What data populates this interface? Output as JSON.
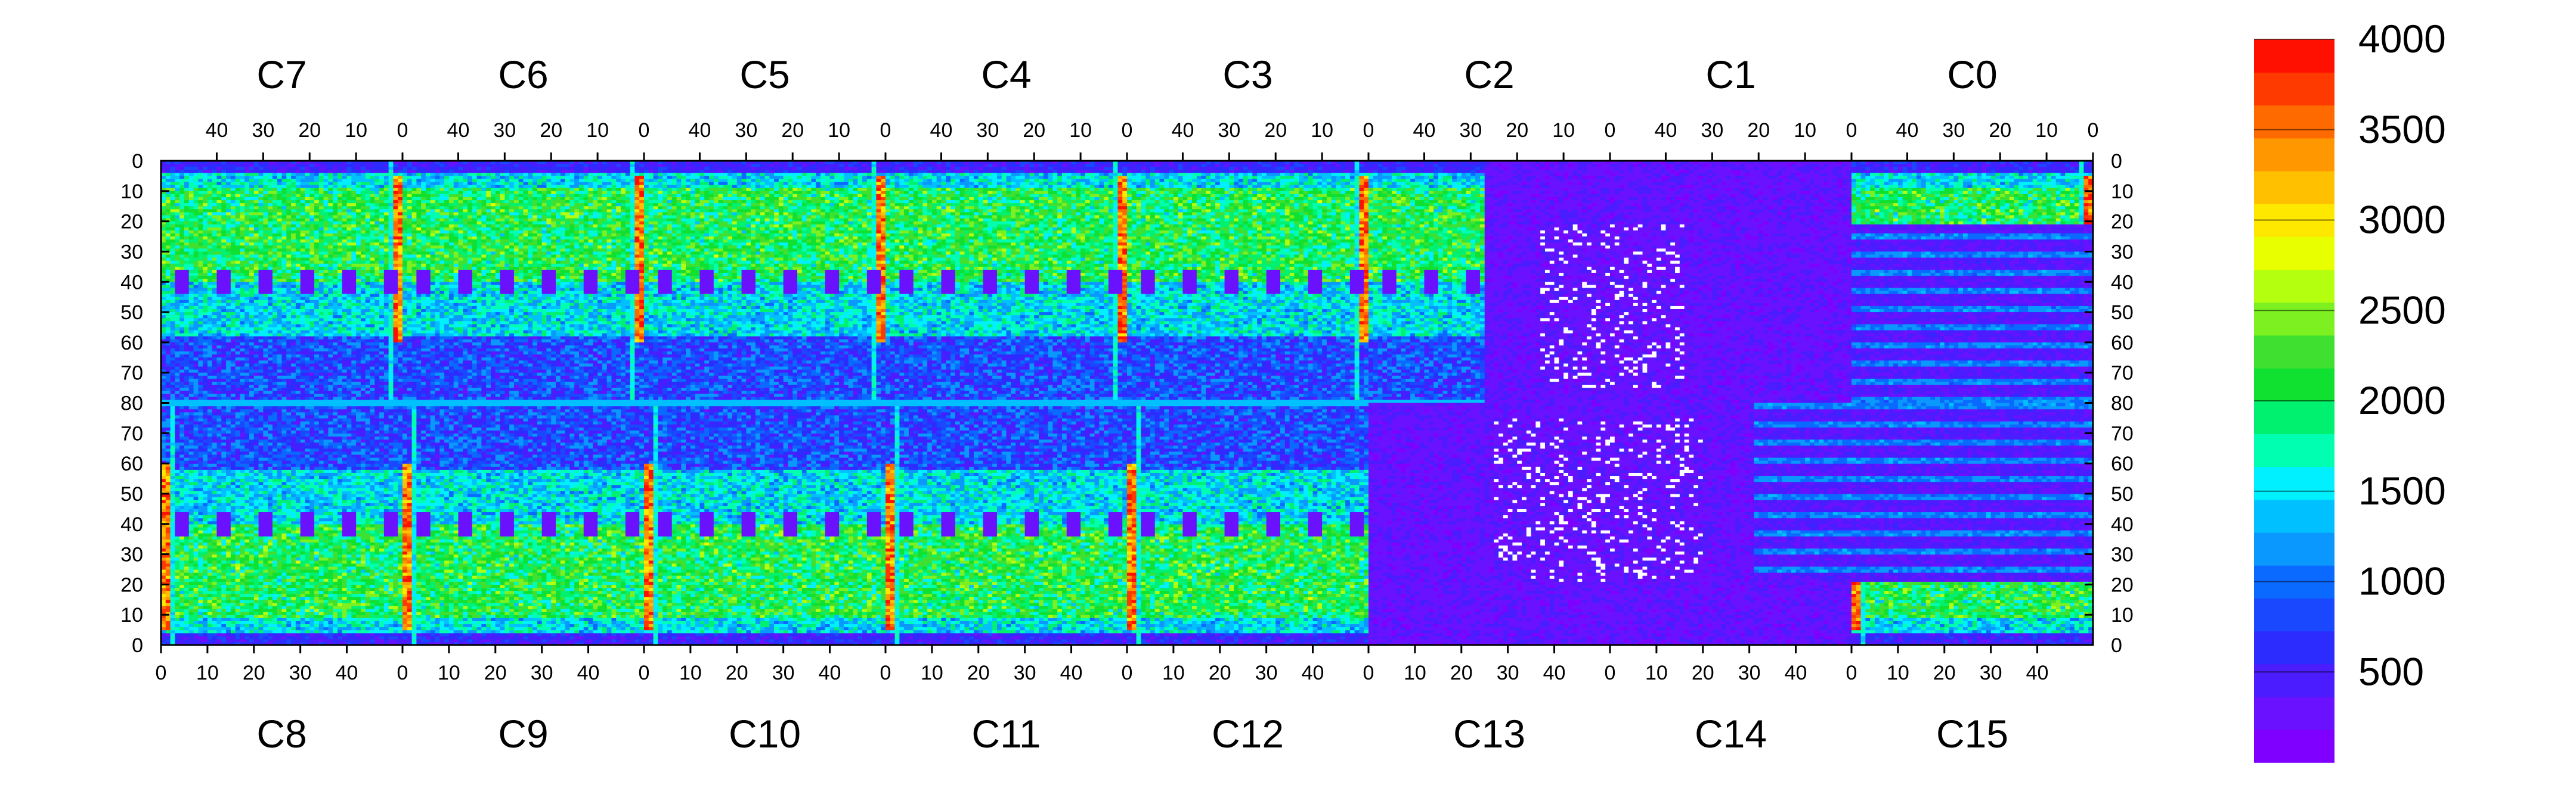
{
  "chart_data": {
    "type": "heatmap",
    "title": "",
    "xlabel": "",
    "ylabel": "",
    "top_chip_labels": [
      "C7",
      "C6",
      "C5",
      "C4",
      "C3",
      "C2",
      "C1",
      "C0"
    ],
    "bottom_chip_labels": [
      "C8",
      "C9",
      "C10",
      "C11",
      "C12",
      "C13",
      "C14",
      "C15"
    ],
    "top_x_tick_labels": [
      "40",
      "30",
      "20",
      "10",
      "0"
    ],
    "bottom_x_tick_labels": [
      "0",
      "10",
      "20",
      "30",
      "40"
    ],
    "x_range_per_chip": [
      0,
      52
    ],
    "top_half_y_ticks": [
      "0",
      "10",
      "20",
      "30",
      "40",
      "50",
      "60",
      "70",
      "80"
    ],
    "bottom_half_y_ticks": [
      "80",
      "70",
      "60",
      "50",
      "40",
      "30",
      "20",
      "10",
      "0"
    ],
    "y_range_per_half": [
      0,
      80
    ],
    "colorbar": {
      "range": [
        0,
        4000
      ],
      "tick_values": [
        500,
        1000,
        1500,
        2000,
        2500,
        3000,
        3500,
        4000
      ],
      "tick_labels": [
        "500",
        "1000",
        "1500",
        "2000",
        "2500",
        "3000",
        "3500",
        "4000"
      ],
      "colors": [
        "#7f00ff",
        "#6a12ff",
        "#4a1cff",
        "#2c2cff",
        "#1a48ff",
        "#0a6aff",
        "#0a98ff",
        "#00c0ff",
        "#00f0ff",
        "#00ffb0",
        "#00f070",
        "#10e030",
        "#40e030",
        "#7cf020",
        "#b4ff10",
        "#e8ff00",
        "#ffe800",
        "#ffc000",
        "#ff9800",
        "#ff6a00",
        "#ff3a00",
        "#ff1000"
      ]
    },
    "grid": false,
    "legend": "colorbar right",
    "description_of_values": {
      "background_typical": 1500,
      "chip_bottom_rows_low": 200,
      "hot_column_at_chip_edges": 3900,
      "C13_C14_region_low": 150,
      "zero_value_pixels": "white",
      "central_seam_row_80": 1400
    }
  }
}
